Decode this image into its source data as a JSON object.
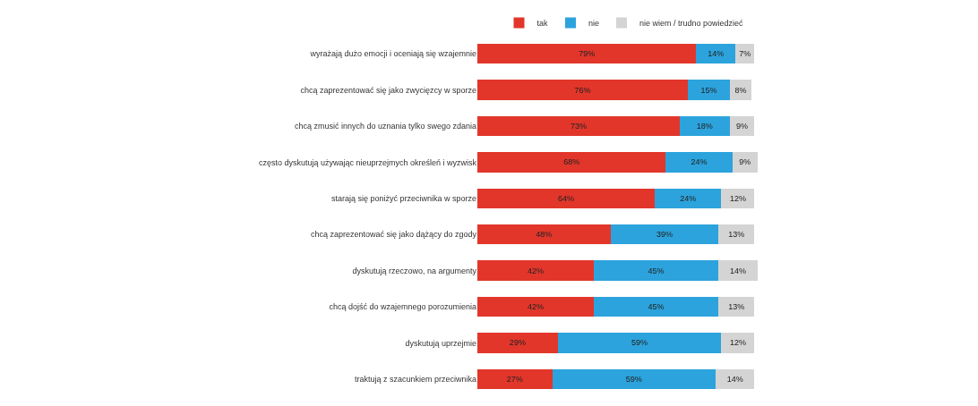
{
  "chart_data": {
    "type": "bar",
    "orientation": "horizontal",
    "stacked": true,
    "legend": "top",
    "tick_labels": "y",
    "categories": [
      "wyrażają dużo emocji i oceniają się wzajemnie",
      "chcą zaprezentować się jako zwycięzcy w sporze",
      "chcą zmusić innych do uznania tylko swego zdania",
      "często dyskutują używając nieuprzejmych określeń i wyzwisk",
      "starają się poniżyć przeciwnika w sporze",
      "chcą zaprezentować się jako dążący do zgody",
      "dyskutują rzeczowo, na argumenty",
      "chcą dojść do wzajemnego porozumienia",
      "dyskutują uprzejmie",
      "traktują z szacunkiem przeciwnika"
    ],
    "series": [
      {
        "name": "tak",
        "color": "#e2362b",
        "values": [
          79,
          76,
          73,
          68,
          64,
          48,
          42,
          42,
          29,
          27
        ],
        "value_labels": [
          "79%",
          "76%",
          "73%",
          "68%",
          "64%",
          "48%",
          "42%",
          "42%",
          "29%",
          "27%"
        ]
      },
      {
        "name": "nie",
        "color": "#2ca3dc",
        "values": [
          14,
          15,
          18,
          24,
          24,
          39,
          45,
          45,
          59,
          59
        ],
        "value_labels": [
          "14%",
          "15%",
          "18%",
          "24%",
          "24%",
          "39%",
          "45%",
          "45%",
          "59%",
          "59%"
        ]
      },
      {
        "name": "nie wiem / trudno powiedzieć",
        "color": "#d4d4d4",
        "values": [
          7,
          8,
          9,
          9,
          12,
          13,
          14,
          13,
          12,
          14
        ],
        "value_labels": [
          "7%",
          "8%",
          "9%",
          "9%",
          "12%",
          "13%",
          "14%",
          "13%",
          "12%",
          "14%"
        ]
      }
    ]
  }
}
